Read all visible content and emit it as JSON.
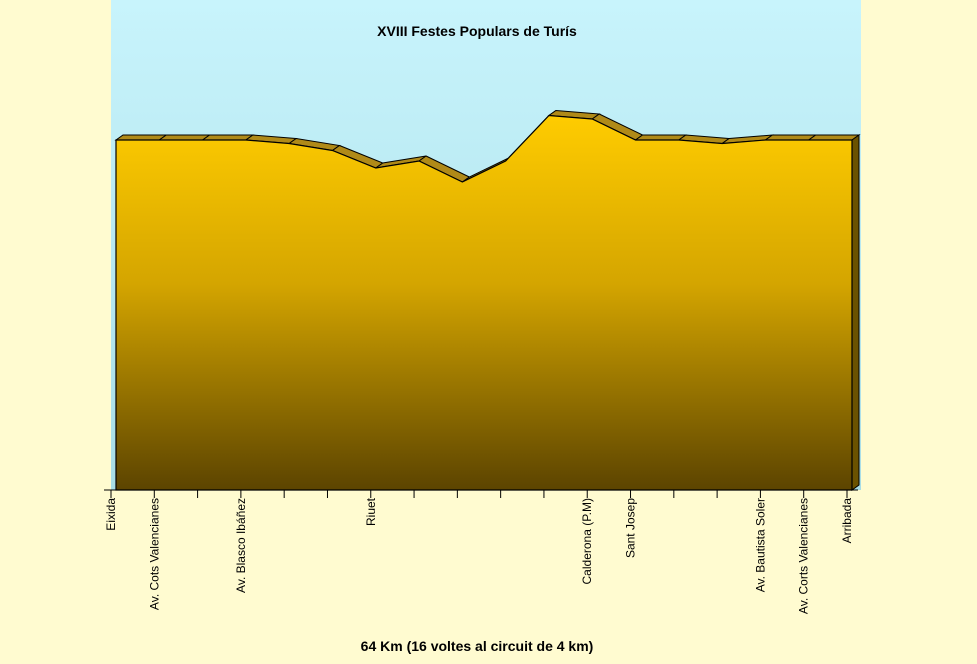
{
  "chart_data": {
    "type": "area",
    "title": "XVIII Festes Populars de Turís",
    "xlabel": "64 Km (16 voltes al circuit de 4 km)",
    "ylabel": "",
    "categories": [
      "Eixida",
      "Av. Cots Valencianes",
      "",
      "Av. Blasco Ibáñez",
      "",
      "",
      "Riuet",
      "",
      "",
      "",
      "",
      "Calderona (P.M)",
      "Sant Josep",
      "",
      "",
      "Av. Bautista Soler",
      "Av. Corts Valencianes",
      "Arribada"
    ],
    "series": [
      {
        "values": [
          100,
          100,
          100,
          100,
          99,
          97,
          92,
          94,
          88,
          94,
          107,
          106,
          100,
          100,
          99,
          100,
          100,
          100
        ]
      }
    ],
    "ylim": [
      0,
      140
    ],
    "grid": false,
    "legend": "none",
    "colors": {
      "fill_top": "#ffcc00",
      "fill_mid": "#d4a500",
      "fill_bottom": "#5c4400",
      "top_face": "#b08a18",
      "side_face": "#6b5200",
      "sky_top": "#c8f4fc",
      "sky_bottom": "#a8dde6",
      "background": "#fffbd0"
    }
  }
}
